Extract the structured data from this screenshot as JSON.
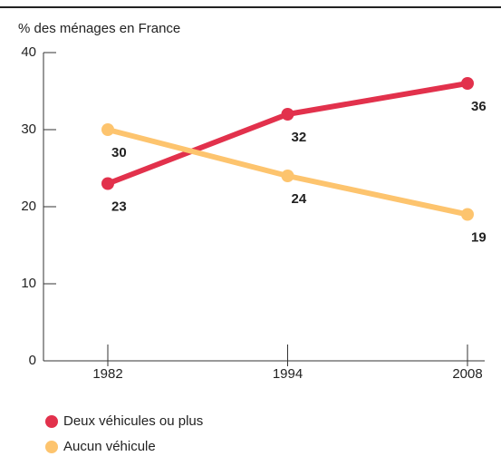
{
  "chart_data": {
    "type": "line",
    "y_label": "% des ménages en France",
    "categories": [
      "1982",
      "1994",
      "2008"
    ],
    "series": [
      {
        "name": "Deux véhicules ou plus",
        "color": "#e2314c",
        "values": [
          23,
          32,
          36
        ]
      },
      {
        "name": "Aucun véhicule",
        "color": "#fdc46e",
        "values": [
          30,
          24,
          19
        ]
      }
    ],
    "ylim": [
      0,
      40
    ],
    "yticks": [
      0,
      10,
      20,
      30,
      40
    ]
  }
}
